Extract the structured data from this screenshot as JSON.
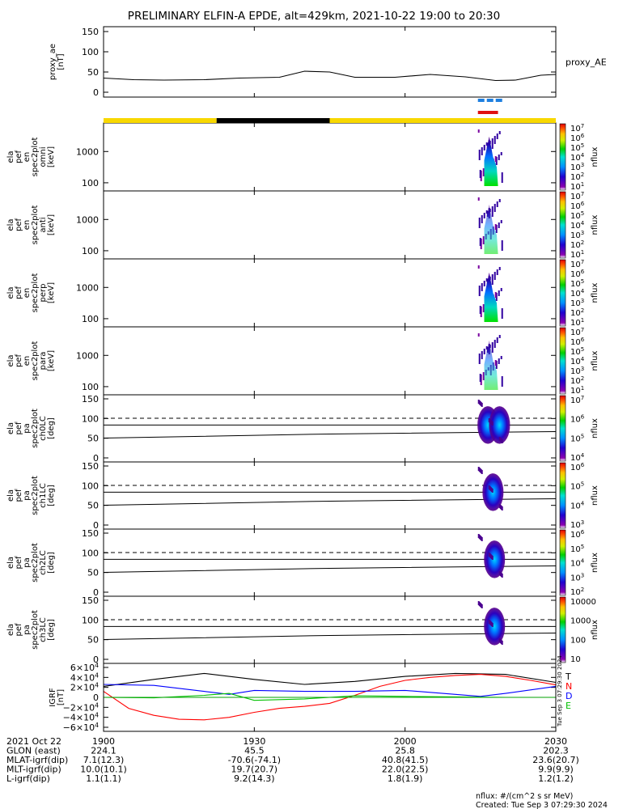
{
  "title": "PRELIMINARY ELFIN-A EPDE, alt=429km, 2021-10-22 19:00 to 20:30",
  "chart_data": [
    {
      "type": "line",
      "name": "proxy_ae",
      "ylabel_lines": [
        "proxy_ae",
        "[nT]"
      ],
      "yticks": [
        "150",
        "100",
        "50",
        "0"
      ],
      "ylim": [
        0,
        150
      ],
      "legend": "proxy_AE",
      "series": [
        {
          "x_min": [
            0,
            6,
            12,
            20,
            27,
            35,
            40,
            45,
            50,
            58,
            65,
            72,
            78,
            82,
            87,
            90
          ],
          "values": [
            35,
            31,
            30,
            31,
            35,
            37,
            52,
            50,
            37,
            37,
            44,
            38,
            29,
            30,
            42,
            44
          ]
        }
      ]
    },
    {
      "type": "heatmap",
      "name": "spectrogram-omni",
      "ylabel_lines": [
        "ela",
        "pef",
        "en",
        "spec2plot",
        "omni",
        "[keV]"
      ],
      "yticks": [
        "1000",
        "100"
      ],
      "colorbar_ticks": [
        "10^7",
        "10^6",
        "10^5",
        "10^4",
        "10^3",
        "10^2",
        "10^1"
      ],
      "colorbar_label": "nflux",
      "active_interval_min": [
        74.5,
        79.5
      ]
    },
    {
      "type": "heatmap",
      "name": "spectrogram-anti",
      "ylabel_lines": [
        "ela",
        "pef",
        "en",
        "spec2plot",
        "anti",
        "[keV]"
      ],
      "yticks": [
        "1000",
        "100"
      ],
      "colorbar_ticks": [
        "10^7",
        "10^6",
        "10^5",
        "10^4",
        "10^3",
        "10^2",
        "10^1"
      ],
      "colorbar_label": "nflux",
      "active_interval_min": [
        74.5,
        79.5
      ]
    },
    {
      "type": "heatmap",
      "name": "spectrogram-perp",
      "ylabel_lines": [
        "ela",
        "pef",
        "en",
        "spec2plot",
        "perp",
        "[keV]"
      ],
      "yticks": [
        "1000",
        "100"
      ],
      "colorbar_ticks": [
        "10^7",
        "10^6",
        "10^5",
        "10^4",
        "10^3",
        "10^2",
        "10^1"
      ],
      "colorbar_label": "nflux",
      "active_interval_min": [
        74.5,
        79.5
      ]
    },
    {
      "type": "heatmap",
      "name": "spectrogram-para",
      "ylabel_lines": [
        "ela",
        "pef",
        "en",
        "spec2plot",
        "para",
        "[keV]"
      ],
      "yticks": [
        "1000",
        "100"
      ],
      "colorbar_ticks": [
        "10^7",
        "10^6",
        "10^5",
        "10^4",
        "10^3",
        "10^2",
        "10^1"
      ],
      "colorbar_label": "nflux",
      "active_interval_min": [
        74.5,
        79.5
      ]
    },
    {
      "type": "heatmap",
      "name": "pitch-angle-ch0LC",
      "ylabel_lines": [
        "ela",
        "pef",
        "pa",
        "spec2plot",
        "ch0LC",
        "[deg]"
      ],
      "yticks": [
        "150",
        "100",
        "50",
        "0"
      ],
      "colorbar_ticks": [
        "10^7",
        "10^6",
        "10^5",
        "10^4"
      ],
      "colorbar_label": "nflux",
      "blobs_min": [
        76.5,
        78.8
      ]
    },
    {
      "type": "heatmap",
      "name": "pitch-angle-ch1LC",
      "ylabel_lines": [
        "ela",
        "pef",
        "pa",
        "spec2plot",
        "ch1LC",
        "[deg]"
      ],
      "yticks": [
        "150",
        "100",
        "50",
        "0"
      ],
      "colorbar_ticks": [
        "10^6",
        "10^5",
        "10^4",
        "10^3"
      ],
      "colorbar_label": "nflux",
      "blobs_min": [
        77.5
      ]
    },
    {
      "type": "heatmap",
      "name": "pitch-angle-ch2LC",
      "ylabel_lines": [
        "ela",
        "pef",
        "pa",
        "spec2plot",
        "ch2LC",
        "[deg]"
      ],
      "yticks": [
        "150",
        "100",
        "50",
        "0"
      ],
      "colorbar_ticks": [
        "10^6",
        "10^5",
        "10^4",
        "10^3",
        "10^2"
      ],
      "colorbar_label": "nflux",
      "blobs_min": [
        77.8
      ]
    },
    {
      "type": "heatmap",
      "name": "pitch-angle-ch3LC",
      "ylabel_lines": [
        "ela",
        "pef",
        "pa",
        "spec2plot",
        "ch3LC",
        "[deg]"
      ],
      "yticks": [
        "150",
        "100",
        "50",
        "0"
      ],
      "colorbar_ticks": [
        "10000",
        "1000",
        "100",
        "10"
      ],
      "colorbar_label": "nflux",
      "blobs_min": [
        77.8
      ]
    },
    {
      "type": "line",
      "name": "igrf",
      "ylabel_lines": [
        "IGRF",
        "[nT]"
      ],
      "yticks": [
        "6×10^4",
        "4×10^4",
        "2×10^4",
        "0",
        "−2×10^4",
        "−4×10^4",
        "−6×10^4"
      ],
      "ylim": [
        -60000,
        60000
      ],
      "legend": [
        "T",
        "N",
        "D",
        "E"
      ],
      "series": [
        {
          "name": "T",
          "color": "#000000",
          "x_min": [
            0,
            10,
            20,
            30,
            40,
            50,
            60,
            70,
            80,
            90
          ],
          "values": [
            22000,
            36000,
            48000,
            36000,
            26000,
            32000,
            42000,
            48000,
            46000,
            30000
          ]
        },
        {
          "name": "N",
          "color": "#ff0000",
          "x_min": [
            0,
            5,
            10,
            15,
            20,
            25,
            30,
            35,
            40,
            45,
            50,
            55,
            60,
            65,
            70,
            75,
            80,
            85,
            90
          ],
          "values": [
            12000,
            -22000,
            -36000,
            -44000,
            -45000,
            -40000,
            -30000,
            -22000,
            -18000,
            -12000,
            4000,
            22000,
            34000,
            40000,
            44000,
            46000,
            42000,
            34000,
            25000
          ]
        },
        {
          "name": "D",
          "color": "#0000ff",
          "x_min": [
            0,
            10,
            20,
            25,
            30,
            40,
            50,
            60,
            70,
            75,
            80,
            90
          ],
          "values": [
            26000,
            24000,
            12000,
            6000,
            14000,
            12000,
            12000,
            14000,
            6000,
            2000,
            8000,
            22000
          ]
        },
        {
          "name": "E",
          "color": "#00c000",
          "x_min": [
            0,
            10,
            20,
            25,
            30,
            40,
            50,
            60,
            70,
            80,
            90
          ],
          "values": [
            0,
            -1000,
            4000,
            8000,
            -6000,
            -3000,
            3000,
            2000,
            1000,
            0,
            0
          ]
        }
      ]
    }
  ],
  "orbit_bar": [
    {
      "from_min": 0,
      "to_min": 22.5,
      "color": "#f8d800"
    },
    {
      "from_min": 22.5,
      "to_min": 45,
      "color": "#000000"
    },
    {
      "from_min": 45,
      "to_min": 90,
      "color": "#f8d800"
    }
  ],
  "science_zone_markers": [
    {
      "from_min": 74.5,
      "to_min": 79.5,
      "color": "#1e7fe0",
      "dashed": true
    },
    {
      "from_min": 74.5,
      "to_min": 78.5,
      "color": "#e01010",
      "dashed": false
    }
  ],
  "x_axis": {
    "rows": [
      [
        "2021 Oct 22",
        "1900",
        "1930",
        "2000",
        "2030"
      ],
      [
        "GLON (east)",
        "224.1",
        "45.5",
        "25.8",
        "202.3"
      ],
      [
        "MLAT-igrf(dip)",
        "7.1(12.3)",
        "-70.6(-74.1)",
        "40.8(41.5)",
        "23.6(20.7)"
      ],
      [
        "MLT-igrf(dip)",
        "10.0(10.1)",
        "19.7(20.7)",
        "22.0(22.5)",
        "9.9(9.9)"
      ],
      [
        "L-igrf(dip)",
        "1.1(1.1)",
        "9.2(14.3)",
        "1.8(1.9)",
        "1.2(1.2)"
      ]
    ],
    "tick_minutes": [
      0,
      30,
      60,
      90
    ]
  },
  "footer": {
    "units": "nflux: #/(cm^2 s sr MeV)",
    "created": "Created: Tue Sep  3 07:29:30 2024",
    "stamp": "Tue Sep  3 07:29:30 2024"
  }
}
